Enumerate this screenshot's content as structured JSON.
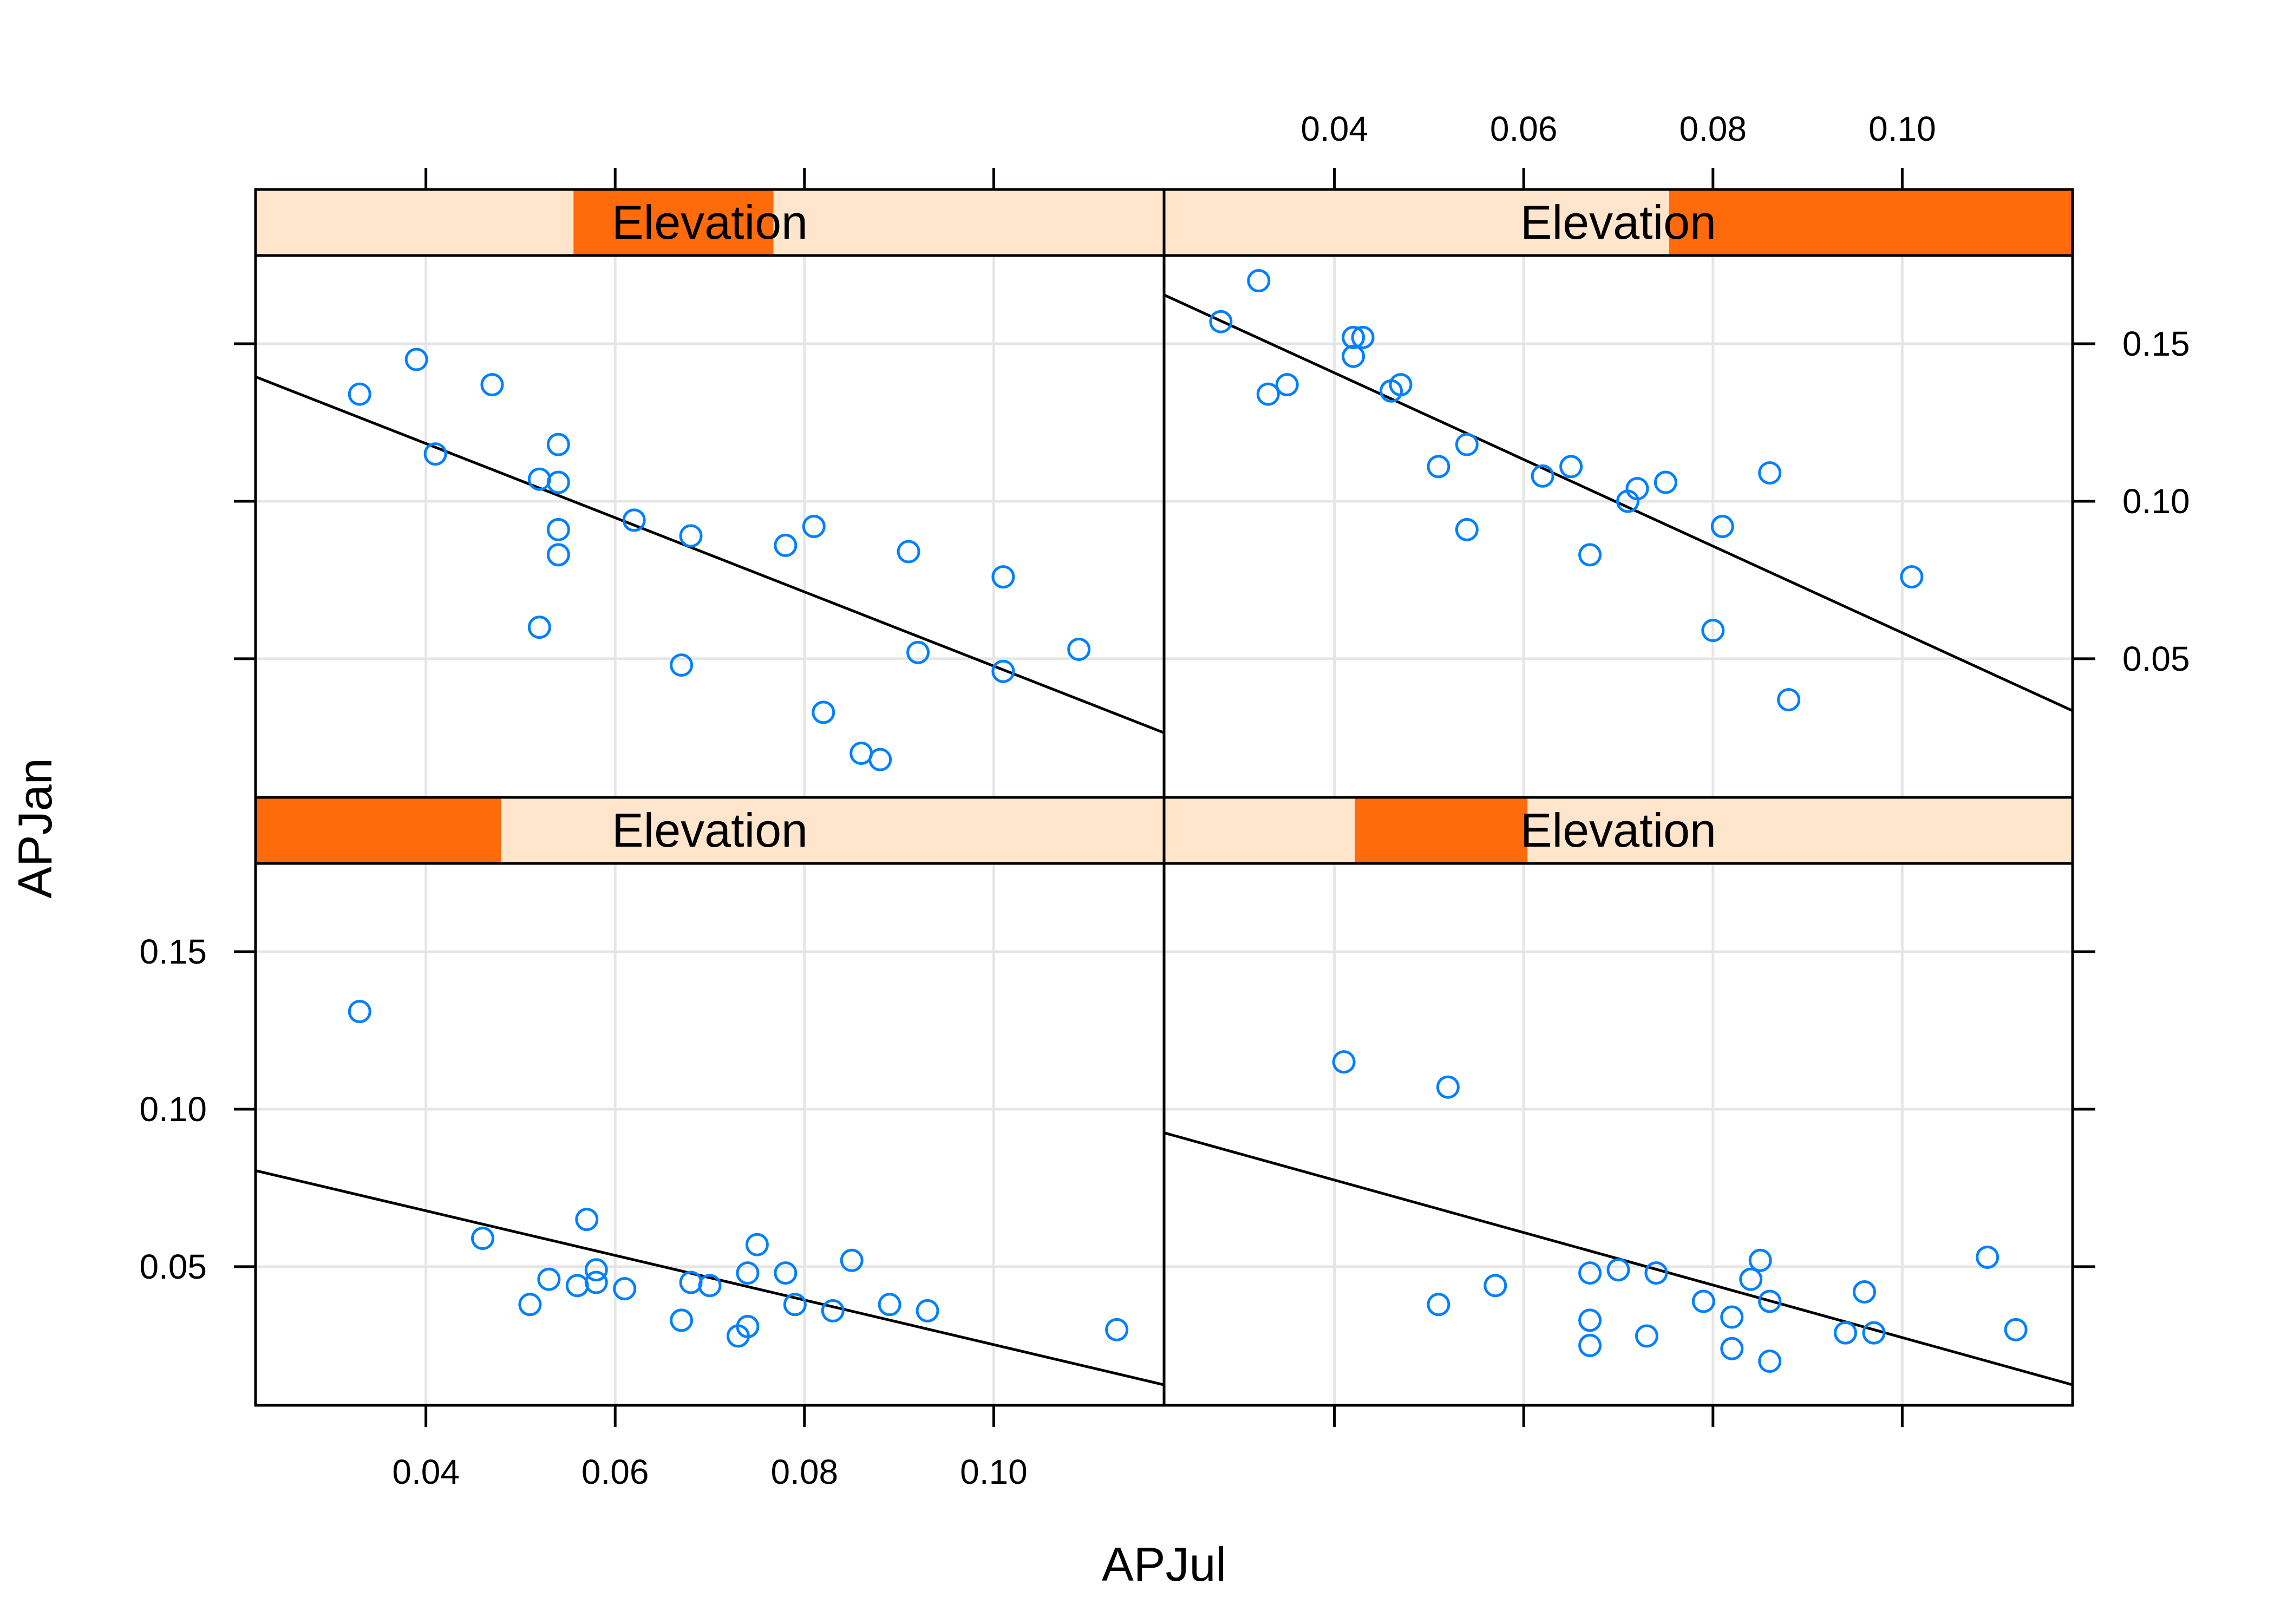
{
  "chart_data": {
    "type": "scatter",
    "xlabel": "APJul",
    "ylabel": "APJan",
    "xlim": [
      0.022,
      0.118
    ],
    "ylim": [
      0.006,
      0.178
    ],
    "x_ticks": [
      "0.04",
      "0.06",
      "0.08",
      "0.10"
    ],
    "y_ticks": [
      "0.05",
      "0.10",
      "0.15"
    ],
    "grid": true,
    "colors": {
      "points": "#0080ff",
      "strip_bg": "#ffe5cc",
      "strip_fill": "#ff6a0a",
      "grid": "#e6e6e6"
    },
    "panels": [
      {
        "strip_label": "Elevation",
        "shingle_range": [
          0.35,
          0.57
        ],
        "fit": {
          "x": [
            0.022,
            0.118
          ],
          "y": [
            0.1395,
            0.0265
          ]
        },
        "points": [
          [
            0.033,
            0.134
          ],
          [
            0.039,
            0.145
          ],
          [
            0.041,
            0.115
          ],
          [
            0.047,
            0.137
          ],
          [
            0.052,
            0.107
          ],
          [
            0.054,
            0.106
          ],
          [
            0.054,
            0.118
          ],
          [
            0.054,
            0.091
          ],
          [
            0.054,
            0.083
          ],
          [
            0.052,
            0.06
          ],
          [
            0.062,
            0.094
          ],
          [
            0.068,
            0.089
          ],
          [
            0.067,
            0.048
          ],
          [
            0.078,
            0.086
          ],
          [
            0.081,
            0.092
          ],
          [
            0.082,
            0.033
          ],
          [
            0.086,
            0.02
          ],
          [
            0.088,
            0.018
          ],
          [
            0.091,
            0.084
          ],
          [
            0.092,
            0.052
          ],
          [
            0.101,
            0.076
          ],
          [
            0.101,
            0.046
          ],
          [
            0.109,
            0.053
          ]
        ]
      },
      {
        "strip_label": "Elevation",
        "shingle_range": [
          0.556,
          1.0
        ],
        "fit": {
          "x": [
            0.022,
            0.118
          ],
          "y": [
            0.1655,
            0.0335
          ]
        },
        "points": [
          [
            0.028,
            0.157
          ],
          [
            0.032,
            0.17
          ],
          [
            0.033,
            0.134
          ],
          [
            0.035,
            0.137
          ],
          [
            0.042,
            0.152
          ],
          [
            0.043,
            0.152
          ],
          [
            0.042,
            0.146
          ],
          [
            0.046,
            0.135
          ],
          [
            0.047,
            0.137
          ],
          [
            0.051,
            0.111
          ],
          [
            0.054,
            0.118
          ],
          [
            0.054,
            0.091
          ],
          [
            0.062,
            0.108
          ],
          [
            0.065,
            0.111
          ],
          [
            0.067,
            0.083
          ],
          [
            0.071,
            0.1
          ],
          [
            0.072,
            0.104
          ],
          [
            0.075,
            0.106
          ],
          [
            0.08,
            0.059
          ],
          [
            0.081,
            0.092
          ],
          [
            0.086,
            0.109
          ],
          [
            0.088,
            0.037
          ],
          [
            0.101,
            0.076
          ]
        ]
      },
      {
        "strip_label": "Elevation",
        "shingle_range": [
          0.0,
          0.27
        ],
        "fit": {
          "x": [
            0.022,
            0.118
          ],
          "y": [
            0.0805,
            0.0125
          ]
        },
        "points": [
          [
            0.033,
            0.131
          ],
          [
            0.046,
            0.059
          ],
          [
            0.051,
            0.038
          ],
          [
            0.053,
            0.046
          ],
          [
            0.056,
            0.044
          ],
          [
            0.057,
            0.065
          ],
          [
            0.058,
            0.045
          ],
          [
            0.058,
            0.049
          ],
          [
            0.061,
            0.043
          ],
          [
            0.067,
            0.033
          ],
          [
            0.068,
            0.045
          ],
          [
            0.07,
            0.044
          ],
          [
            0.073,
            0.028
          ],
          [
            0.074,
            0.031
          ],
          [
            0.074,
            0.048
          ],
          [
            0.075,
            0.057
          ],
          [
            0.078,
            0.048
          ],
          [
            0.079,
            0.038
          ],
          [
            0.083,
            0.036
          ],
          [
            0.085,
            0.052
          ],
          [
            0.089,
            0.038
          ],
          [
            0.093,
            0.036
          ],
          [
            0.113,
            0.03
          ]
        ]
      },
      {
        "strip_label": "Elevation",
        "shingle_range": [
          0.21,
          0.4
        ],
        "fit": {
          "x": [
            0.022,
            0.118
          ],
          "y": [
            0.0925,
            0.0125
          ]
        },
        "points": [
          [
            0.041,
            0.115
          ],
          [
            0.051,
            0.038
          ],
          [
            0.052,
            0.107
          ],
          [
            0.057,
            0.044
          ],
          [
            0.067,
            0.048
          ],
          [
            0.067,
            0.033
          ],
          [
            0.067,
            0.025
          ],
          [
            0.07,
            0.049
          ],
          [
            0.073,
            0.028
          ],
          [
            0.074,
            0.048
          ],
          [
            0.079,
            0.039
          ],
          [
            0.082,
            0.034
          ],
          [
            0.082,
            0.024
          ],
          [
            0.084,
            0.046
          ],
          [
            0.085,
            0.052
          ],
          [
            0.086,
            0.039
          ],
          [
            0.086,
            0.02
          ],
          [
            0.094,
            0.029
          ],
          [
            0.096,
            0.042
          ],
          [
            0.097,
            0.029
          ],
          [
            0.109,
            0.053
          ],
          [
            0.112,
            0.03
          ]
        ]
      }
    ]
  }
}
